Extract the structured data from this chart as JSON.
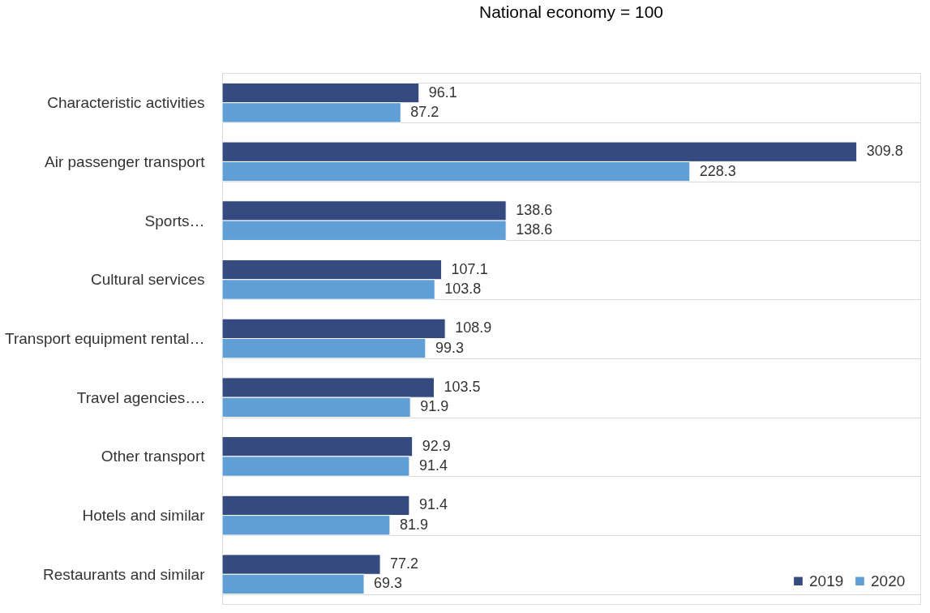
{
  "chart_data": {
    "type": "bar",
    "orientation": "horizontal",
    "title": "National economy = 100",
    "categories": [
      "Characteristic activities",
      "Air passenger transport",
      "Sports…",
      "Cultural services",
      "Transport equipment rental…",
      "Travel agencies….",
      "Other transport",
      "Hotels and similar",
      "Restaurants and similar"
    ],
    "series": [
      {
        "name": "2019",
        "color": "#354a7e",
        "values": [
          96.1,
          309.8,
          138.6,
          107.1,
          108.9,
          103.5,
          92.9,
          91.4,
          77.2
        ]
      },
      {
        "name": "2020",
        "color": "#5f9fd6",
        "values": [
          87.2,
          228.3,
          138.6,
          103.8,
          99.3,
          91.9,
          91.4,
          81.9,
          69.3
        ]
      }
    ],
    "data_labels": true,
    "grid": "y",
    "legend": "bottom right"
  }
}
